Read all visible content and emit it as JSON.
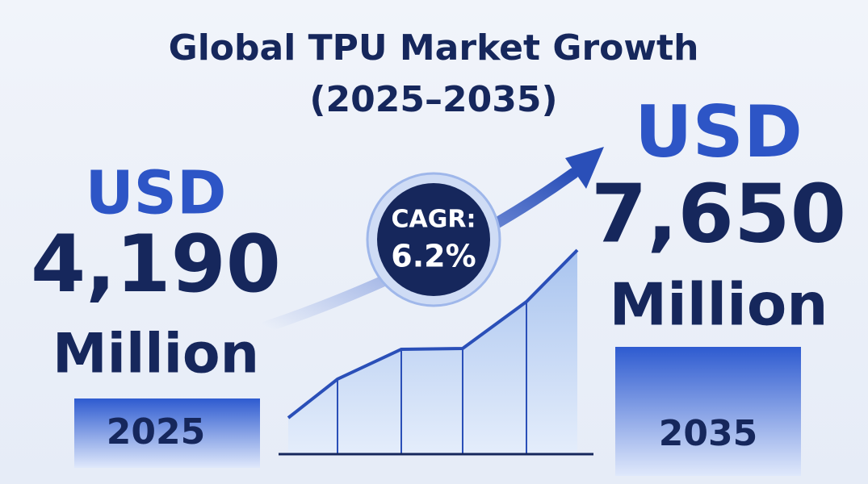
{
  "title": {
    "line1": "Global TPU Market Growth",
    "line2": "(2025–2035)"
  },
  "start": {
    "currency": "USD",
    "value": "4,190",
    "unit": "Million",
    "year": "2025"
  },
  "end": {
    "currency": "USD",
    "value": "7,650",
    "unit": "Million",
    "year": "2035"
  },
  "cagr": {
    "label": "CAGR:",
    "value": "6.2%"
  }
}
